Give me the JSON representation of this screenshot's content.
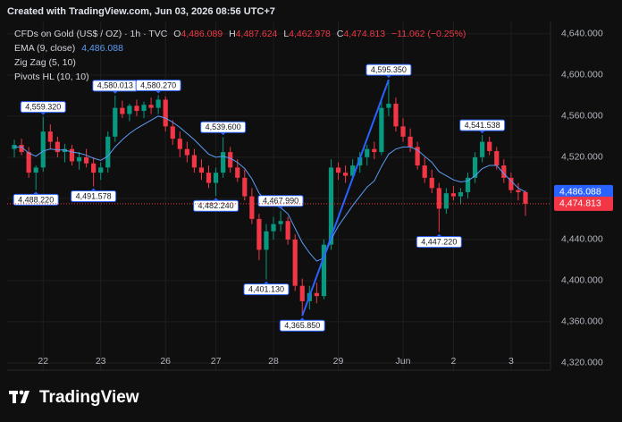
{
  "header": {
    "banner": "Created with TradingView.com, Jun 03, 2026 08:56 UTC+7",
    "symbol": "CFDs on Gold (US$ / OZ) · 1h · TVC",
    "ohlc": [
      {
        "key": "O",
        "value": "4,486.089"
      },
      {
        "key": "H",
        "value": "4,487.624"
      },
      {
        "key": "L",
        "value": "4,462.978"
      },
      {
        "key": "C",
        "value": "4,474.813"
      }
    ],
    "change": "−11.062 (−0.25%)",
    "logo": "TradingView"
  },
  "chart_data": {
    "type": "candlestick",
    "categories": [
      null,
      null,
      null,
      null,
      "22",
      null,
      null,
      null,
      null,
      null,
      null,
      null,
      "23",
      null,
      null,
      null,
      null,
      null,
      null,
      null,
      null,
      "26",
      null,
      null,
      null,
      null,
      null,
      null,
      "27",
      null,
      null,
      null,
      null,
      null,
      null,
      null,
      "28",
      null,
      null,
      null,
      null,
      null,
      null,
      null,
      null,
      "29",
      null,
      null,
      null,
      null,
      null,
      null,
      null,
      null,
      "Jun",
      null,
      null,
      null,
      null,
      null,
      null,
      "2",
      null,
      null,
      null,
      null,
      null,
      null,
      null,
      "3",
      null,
      null
    ],
    "open": [
      4528,
      4532,
      4525,
      4505,
      4510,
      4545,
      4535,
      4525,
      4528,
      4516,
      4520,
      4514,
      4505,
      4510,
      4540,
      4568,
      4562,
      4570,
      4565,
      4571,
      4568,
      4576,
      4550,
      4538,
      4528,
      4522,
      4510,
      4505,
      4495,
      4505,
      4525,
      4510,
      4500,
      4482,
      4460,
      4430,
      4448,
      4455,
      4458,
      4440,
      4395,
      4380,
      4388,
      4385,
      4435,
      4510,
      4505,
      4502,
      4512,
      4520,
      4528,
      4525,
      4568,
      4572,
      4550,
      4540,
      4530,
      4512,
      4500,
      4490,
      4470,
      4485,
      4482,
      4486,
      4500,
      4520,
      4535,
      4526,
      4512,
      4500,
      4488,
      4486.089
    ],
    "high": [
      4537,
      4538,
      4530,
      4512,
      4559.32,
      4552,
      4540,
      4533,
      4532,
      4525,
      4528,
      4520,
      4515,
      4545,
      4580.013,
      4575,
      4572,
      4576,
      4574,
      4578,
      4580.27,
      4579,
      4556,
      4545,
      4535,
      4528,
      4518,
      4512,
      4510,
      4539.6,
      4530,
      4518,
      4508,
      4490,
      4465,
      4455,
      4462,
      4467.99,
      4462,
      4445,
      4402,
      4395,
      4398,
      4440,
      4518,
      4515,
      4512,
      4518,
      4525,
      4532,
      4535,
      4575,
      4595.35,
      4578,
      4558,
      4548,
      4535,
      4520,
      4508,
      4495,
      4490,
      4492,
      4490,
      4505,
      4525,
      4541.538,
      4540,
      4530,
      4518,
      4505,
      4495,
      4487.624
    ],
    "low": [
      4520,
      4522,
      4500,
      4488.22,
      4506,
      4528,
      4520,
      4515,
      4512,
      4508,
      4510,
      4491.578,
      4498,
      4505,
      4535,
      4558,
      4555,
      4560,
      4558,
      4562,
      4562,
      4545,
      4532,
      4520,
      4515,
      4505,
      4498,
      4490,
      4482.24,
      4500,
      4505,
      4496,
      4478,
      4455,
      4420,
      4401.13,
      4440,
      4448,
      4435,
      4390,
      4365.85,
      4372,
      4378,
      4382,
      4430,
      4498,
      4495,
      4498,
      4505,
      4512,
      4518,
      4522,
      4560,
      4545,
      4535,
      4525,
      4508,
      4495,
      4485,
      4447.22,
      4465,
      4478,
      4474,
      4480,
      4495,
      4515,
      4522,
      4508,
      4495,
      4485,
      4478,
      4462.978
    ],
    "close": [
      4532,
      4525,
      4505,
      4510,
      4545,
      4535,
      4525,
      4528,
      4516,
      4520,
      4514,
      4505,
      4510,
      4540,
      4568,
      4562,
      4570,
      4565,
      4571,
      4568,
      4576,
      4550,
      4538,
      4528,
      4522,
      4510,
      4505,
      4495,
      4505,
      4525,
      4510,
      4500,
      4482,
      4460,
      4430,
      4448,
      4455,
      4458,
      4440,
      4395,
      4380,
      4388,
      4385,
      4435,
      4510,
      4505,
      4502,
      4512,
      4520,
      4528,
      4525,
      4568,
      4572,
      4550,
      4540,
      4530,
      4512,
      4500,
      4490,
      4470,
      4485,
      4482,
      4486,
      4500,
      4520,
      4535,
      4526,
      4512,
      4500,
      4488,
      4486,
      4474.813
    ],
    "pivot_high_labels": [
      null,
      null,
      null,
      null,
      "4,559.320",
      null,
      null,
      null,
      null,
      null,
      null,
      null,
      null,
      null,
      "4,580.013",
      null,
      null,
      null,
      null,
      null,
      "4,580.270",
      null,
      null,
      null,
      null,
      null,
      null,
      null,
      null,
      "4,539.600",
      null,
      null,
      null,
      null,
      null,
      null,
      null,
      "4,467.990",
      null,
      null,
      null,
      null,
      null,
      null,
      null,
      null,
      null,
      null,
      null,
      null,
      null,
      null,
      "4,595.350",
      null,
      null,
      null,
      null,
      null,
      null,
      null,
      null,
      null,
      null,
      null,
      null,
      "4,541.538",
      null,
      null,
      null,
      null,
      null,
      null
    ],
    "pivot_low_labels": [
      null,
      null,
      null,
      "4,488.220",
      null,
      null,
      null,
      null,
      null,
      null,
      null,
      "4,491.578",
      null,
      null,
      null,
      null,
      null,
      null,
      null,
      null,
      null,
      null,
      null,
      null,
      null,
      null,
      null,
      null,
      "4,482.240",
      null,
      null,
      null,
      null,
      null,
      null,
      "4,401.130",
      null,
      null,
      null,
      null,
      "4,365.850",
      null,
      null,
      null,
      null,
      null,
      null,
      null,
      null,
      null,
      null,
      null,
      null,
      null,
      null,
      null,
      null,
      null,
      null,
      "4,447.220",
      null,
      null,
      null,
      null,
      null,
      null,
      null,
      null,
      null,
      null,
      null,
      null
    ],
    "up_color": "#089981",
    "down_color": "#f23645",
    "ema": {
      "name": "EMA (9, close)",
      "color": "#5b9cf6",
      "last_label": "4,486.088",
      "values": [
        4530,
        4530,
        4524,
        4521,
        4526,
        4528,
        4527,
        4527,
        4525,
        4524,
        4522,
        4519,
        4517,
        4521,
        4530,
        4537,
        4543,
        4548,
        4552,
        4556,
        4560,
        4558,
        4554,
        4549,
        4543,
        4537,
        4530,
        4523,
        4520,
        4521,
        4519,
        4515,
        4509,
        4499,
        4485,
        4478,
        4474,
        4471,
        4465,
        4451,
        4437,
        4427,
        4419,
        4422,
        4440,
        4453,
        4463,
        4473,
        4482,
        4491,
        4497,
        4511,
        4523,
        4528,
        4530,
        4530,
        4527,
        4521,
        4515,
        4506,
        4502,
        4498,
        4496,
        4497,
        4502,
        4509,
        4512,
        4512,
        4504,
        4497,
        4490,
        4486.088
      ]
    },
    "zigzag": {
      "name": "Zig Zag (5, 10)",
      "color": "#2962ff"
    },
    "pivots": {
      "name": "Pivots HL (10, 10)",
      "color": "#2962ff"
    },
    "last_price_label": "4,474.813",
    "ylim": [
      4313.0,
      4652.0
    ],
    "yticks": [
      {
        "value": 4320,
        "label": "4,320.000"
      },
      {
        "value": 4360,
        "label": "4,360.000"
      },
      {
        "value": 4400,
        "label": "4,400.000"
      },
      {
        "value": 4440,
        "label": "4,440.000"
      },
      {
        "value": 4480,
        "label": "4,480.000"
      },
      {
        "value": 4520,
        "label": "4,520.000"
      },
      {
        "value": 4560,
        "label": "4,560.000"
      },
      {
        "value": 4600,
        "label": "4,600.000"
      },
      {
        "value": 4640,
        "label": "4,640.000"
      }
    ],
    "grid": true
  }
}
